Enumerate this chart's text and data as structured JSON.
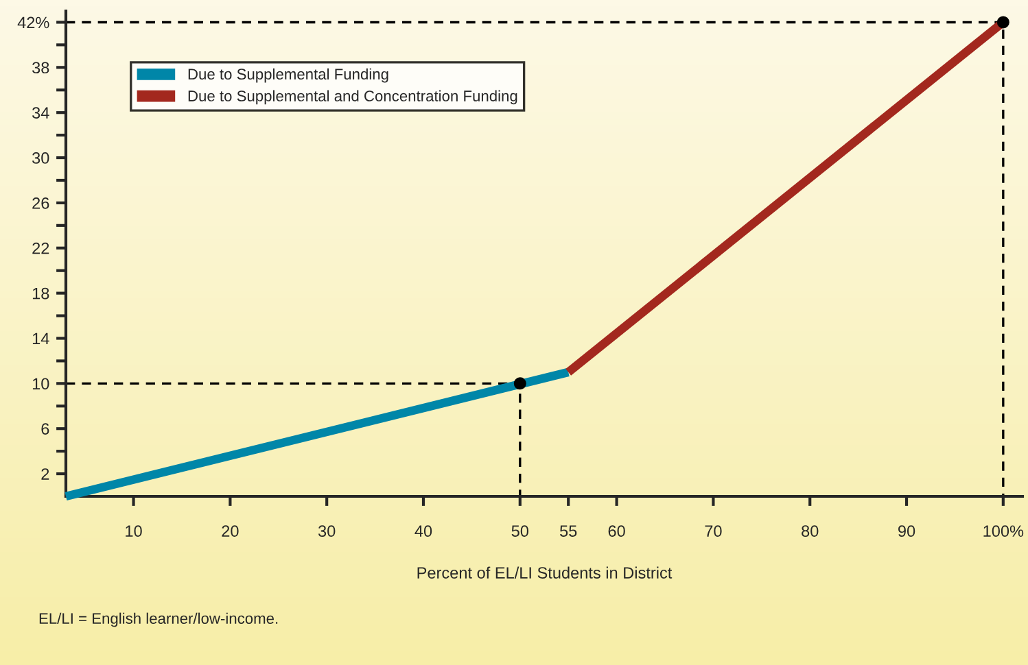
{
  "chart_data": {
    "type": "line",
    "xlabel": "Percent of EL/LI Students in District",
    "annotations": [
      "EL/LI = English learner/low-income."
    ],
    "series": [
      {
        "name": "Due to Supplemental Funding",
        "color": "#0086a8",
        "x": [
          3,
          55
        ],
        "values": [
          0,
          11
        ]
      },
      {
        "name": "Due to Supplemental and Concentration Funding",
        "color": "#a3281e",
        "x": [
          55,
          100
        ],
        "values": [
          11,
          42
        ]
      },
      {
        "type": "line",
        "color": "#000000",
        "line_style": "dashed",
        "x": [
          3,
          50,
          50
        ],
        "values": [
          10,
          10,
          0
        ]
      },
      {
        "type": "line",
        "color": "#000000",
        "line_style": "dashed",
        "x": [
          3,
          100,
          100
        ],
        "values": [
          42,
          42,
          0
        ]
      },
      {
        "type": "scatter",
        "color": "#000000",
        "marker": "circle",
        "x": [
          50,
          100
        ],
        "values": [
          10,
          42
        ]
      }
    ],
    "xlim": [
      3,
      102
    ],
    "ylim": [
      0,
      43
    ],
    "xticks": [
      10,
      20,
      30,
      40,
      50,
      55,
      60,
      70,
      80,
      90,
      {
        "value": 100,
        "label": "100%"
      }
    ],
    "yticks": [
      2,
      {
        "value": 4,
        "label": null
      },
      6,
      {
        "value": 8,
        "label": null
      },
      10,
      {
        "value": 12,
        "label": null
      },
      14,
      {
        "value": 16,
        "label": null
      },
      18,
      {
        "value": 20,
        "label": null
      },
      22,
      {
        "value": 24,
        "label": null
      },
      26,
      {
        "value": 28,
        "label": null
      },
      30,
      {
        "value": 32,
        "label": null
      },
      34,
      {
        "value": 36,
        "label": null
      },
      38,
      {
        "value": 40,
        "label": null
      },
      {
        "value": 42,
        "label": "42%"
      }
    ],
    "grid": false,
    "legend": "top left"
  }
}
